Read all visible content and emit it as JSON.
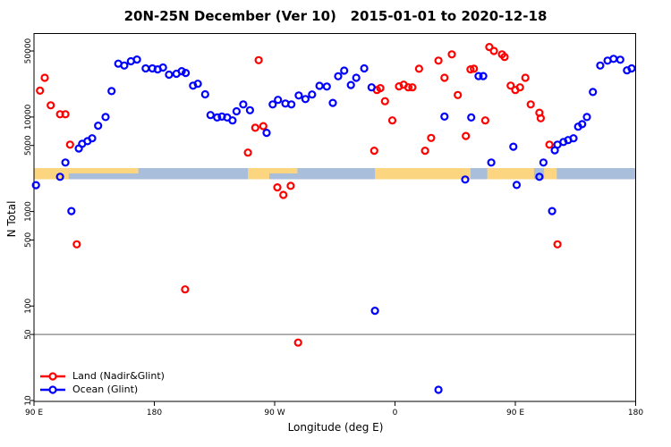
{
  "title": "20N-25N December (Ver 10)   2015-01-01 to 2020-12-18",
  "axes": {
    "x": {
      "label": "Longitude (deg E)",
      "note": "axis spans 450 degrees eastward starting at 90E; tick positions in deg from left edge",
      "ticks": [
        {
          "deg": 0,
          "label": "90 E"
        },
        {
          "deg": 90,
          "label": "180"
        },
        {
          "deg": 180,
          "label": "90 W"
        },
        {
          "deg": 270,
          "label": "0"
        },
        {
          "deg": 360,
          "label": "90 E"
        },
        {
          "deg": 450,
          "label": "180"
        }
      ]
    },
    "y": {
      "label": "N Total",
      "scale": "log",
      "range": [
        10,
        55000
      ],
      "tick_values": [
        50000,
        10000,
        5000,
        1000,
        500,
        100,
        50,
        10
      ]
    }
  },
  "reference_line": {
    "value": 50,
    "color": "#808080"
  },
  "map_strip": {
    "description": "world-map band for 20N-25N drawn across the plot near N=2500",
    "ocean_color": "#a9bedb",
    "land_color": "#fcd581",
    "land_segments_deg": [
      [
        0,
        26
      ],
      [
        160,
        176
      ],
      [
        255,
        326.5
      ],
      [
        339,
        374
      ],
      [
        381.5,
        391
      ]
    ],
    "land_top_half_segments_deg": [
      [
        26,
        78
      ],
      [
        176,
        197
      ]
    ]
  },
  "legend": {
    "items": [
      {
        "label": "Land (Nadir&Glint)",
        "color": "#ff0000"
      },
      {
        "label": "Ocean (Glint)",
        "color": "#0000ff"
      }
    ]
  },
  "chart_data": {
    "type": "scatter",
    "title": "20N-25N December (Ver 10)   2015-01-01 to 2020-12-18",
    "xlabel": "Longitude (deg E)",
    "ylabel": "N Total",
    "x_unit": "degrees east of 90E (0-450 across wrapped axis)",
    "ylim": [
      10,
      55000
    ],
    "y_scale": "log",
    "legend_position": "bottom-left",
    "series": [
      {
        "name": "Land (Nadir&Glint)",
        "color": "#ff0000",
        "points": [
          [
            4.5,
            19000
          ],
          [
            8,
            26000
          ],
          [
            12.5,
            13300
          ],
          [
            19.5,
            10700
          ],
          [
            23.5,
            10700
          ],
          [
            27,
            5100
          ],
          [
            32,
            450
          ],
          [
            113,
            150
          ],
          [
            160,
            4200
          ],
          [
            165.5,
            7700
          ],
          [
            168,
            40000
          ],
          [
            171.5,
            8000
          ],
          [
            182,
            1800
          ],
          [
            186.5,
            1500
          ],
          [
            192,
            1870
          ],
          [
            197.5,
            41
          ],
          [
            254.5,
            4400
          ],
          [
            256.5,
            19300
          ],
          [
            259,
            20200
          ],
          [
            262.5,
            14700
          ],
          [
            268,
            9200
          ],
          [
            273,
            21100
          ],
          [
            276.5,
            22000
          ],
          [
            280,
            20600
          ],
          [
            283,
            20600
          ],
          [
            288,
            32400
          ],
          [
            292.5,
            4400
          ],
          [
            297,
            6000
          ],
          [
            302.5,
            39500
          ],
          [
            307,
            26000
          ],
          [
            312.5,
            46000
          ],
          [
            317,
            17100
          ],
          [
            323,
            6300
          ],
          [
            326.5,
            31900
          ],
          [
            329,
            32400
          ],
          [
            337.5,
            9200
          ],
          [
            340.5,
            55000
          ],
          [
            344,
            50000
          ],
          [
            350,
            46000
          ],
          [
            352,
            43200
          ],
          [
            356.5,
            21500
          ],
          [
            360,
            19300
          ],
          [
            363.5,
            20600
          ],
          [
            367.5,
            26000
          ],
          [
            371.5,
            13600
          ],
          [
            378,
            11100
          ],
          [
            379,
            9700
          ],
          [
            385.5,
            5100
          ],
          [
            391.5,
            450
          ]
        ]
      },
      {
        "name": "Ocean (Glint)",
        "color": "#0000ff",
        "points": [
          [
            1.5,
            1900
          ],
          [
            19.5,
            2330
          ],
          [
            23.5,
            3300
          ],
          [
            28,
            1010
          ],
          [
            33.5,
            4650
          ],
          [
            36,
            5200
          ],
          [
            40,
            5550
          ],
          [
            43.5,
            5950
          ],
          [
            48,
            8100
          ],
          [
            53.5,
            10000
          ],
          [
            58,
            18800
          ],
          [
            63,
            36700
          ],
          [
            67.5,
            35100
          ],
          [
            72.5,
            38900
          ],
          [
            77,
            40600
          ],
          [
            83.5,
            32700
          ],
          [
            88.5,
            32700
          ],
          [
            92.5,
            31900
          ],
          [
            96.5,
            33400
          ],
          [
            101,
            28100
          ],
          [
            106.5,
            28700
          ],
          [
            110.5,
            30600
          ],
          [
            113.5,
            29300
          ],
          [
            119,
            21500
          ],
          [
            122.5,
            22500
          ],
          [
            128,
            17400
          ],
          [
            132,
            10500
          ],
          [
            137,
            9900
          ],
          [
            140.5,
            10100
          ],
          [
            144.5,
            9900
          ],
          [
            148.5,
            9200
          ],
          [
            151.5,
            11500
          ],
          [
            156.5,
            13600
          ],
          [
            161.5,
            11800
          ],
          [
            174,
            6800
          ],
          [
            178.5,
            13600
          ],
          [
            182.5,
            15200
          ],
          [
            188,
            13900
          ],
          [
            192.5,
            13600
          ],
          [
            198,
            16900
          ],
          [
            203,
            15500
          ],
          [
            208,
            17300
          ],
          [
            213.5,
            21400
          ],
          [
            219,
            21000
          ],
          [
            223.5,
            14100
          ],
          [
            227.5,
            27000
          ],
          [
            232,
            31000
          ],
          [
            237,
            21800
          ],
          [
            241,
            26000
          ],
          [
            247,
            32700
          ],
          [
            252.5,
            20600
          ],
          [
            255,
            89
          ],
          [
            302.5,
            13
          ],
          [
            307,
            10100
          ],
          [
            322.5,
            2180
          ],
          [
            327,
            9900
          ],
          [
            332.5,
            27100
          ],
          [
            336,
            27100
          ],
          [
            342,
            3300
          ],
          [
            358.5,
            4850
          ],
          [
            361,
            1910
          ],
          [
            378,
            2330
          ],
          [
            381,
            3300
          ],
          [
            387.5,
            1010
          ],
          [
            389.5,
            4450
          ],
          [
            391.5,
            5100
          ],
          [
            396,
            5450
          ],
          [
            399.5,
            5700
          ],
          [
            403.5,
            5950
          ],
          [
            407,
            7900
          ],
          [
            410,
            8400
          ],
          [
            413.5,
            10000
          ],
          [
            418,
            18400
          ],
          [
            423.5,
            35100
          ],
          [
            429,
            39500
          ],
          [
            433.5,
            41300
          ],
          [
            438.5,
            40400
          ],
          [
            443.5,
            31200
          ],
          [
            447,
            32700
          ]
        ]
      }
    ]
  }
}
